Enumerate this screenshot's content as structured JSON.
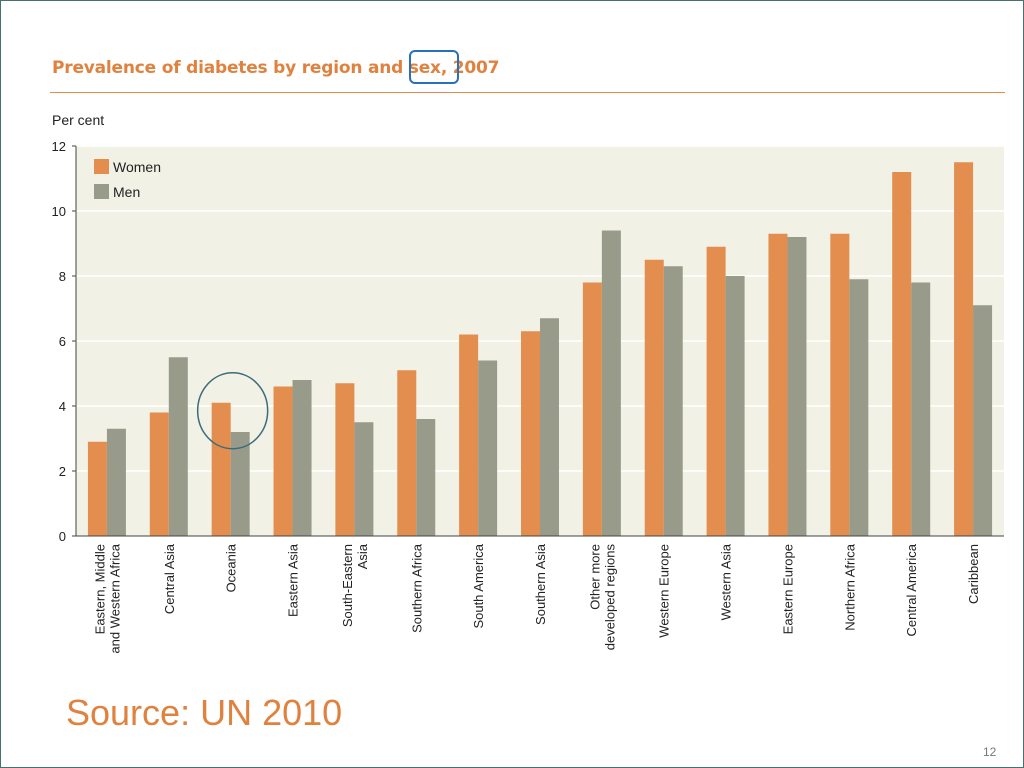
{
  "page": {
    "source": "Source: UN 2010",
    "page_number": "12"
  },
  "chart_data": {
    "type": "bar",
    "title": "Prevalence of diabetes by region and sex, 2007",
    "y_unit": "Per cent",
    "xlabel": "",
    "ylabel": "",
    "ylim": [
      0,
      12
    ],
    "yticks": [
      0,
      2,
      4,
      6,
      8,
      10,
      12
    ],
    "grid": true,
    "legend_placement": "top-left",
    "categories": [
      [
        "Eastern, Middle",
        "and Western Africa"
      ],
      [
        "Central Asia"
      ],
      [
        "Oceania"
      ],
      [
        "Eastern Asia"
      ],
      [
        "South-Eastern",
        "Asia"
      ],
      [
        "Southern Africa"
      ],
      [
        "South America"
      ],
      [
        "Southern Asia"
      ],
      [
        "Other more",
        "developed regions"
      ],
      [
        "Western Europe"
      ],
      [
        "Western Asia"
      ],
      [
        "Eastern Europe"
      ],
      [
        "Northern Africa"
      ],
      [
        "Central America"
      ],
      [
        "Caribbean"
      ]
    ],
    "series": [
      {
        "name": "Women",
        "color": "#e38d4e",
        "values": [
          2.9,
          3.8,
          4.1,
          4.6,
          4.7,
          5.1,
          6.2,
          6.3,
          7.8,
          8.5,
          8.9,
          9.3,
          9.3,
          11.2,
          11.5
        ]
      },
      {
        "name": "Men",
        "color": "#999b8a",
        "values": [
          3.3,
          5.5,
          3.2,
          4.8,
          3.5,
          3.6,
          5.4,
          6.7,
          9.4,
          8.3,
          8.0,
          9.2,
          7.9,
          7.8,
          7.1
        ]
      }
    ],
    "plot_background": "#f1f1e6",
    "highlight": {
      "category_index": 2,
      "color": "#3d6b7a"
    },
    "title_highlight_color": "#2a70b8"
  }
}
